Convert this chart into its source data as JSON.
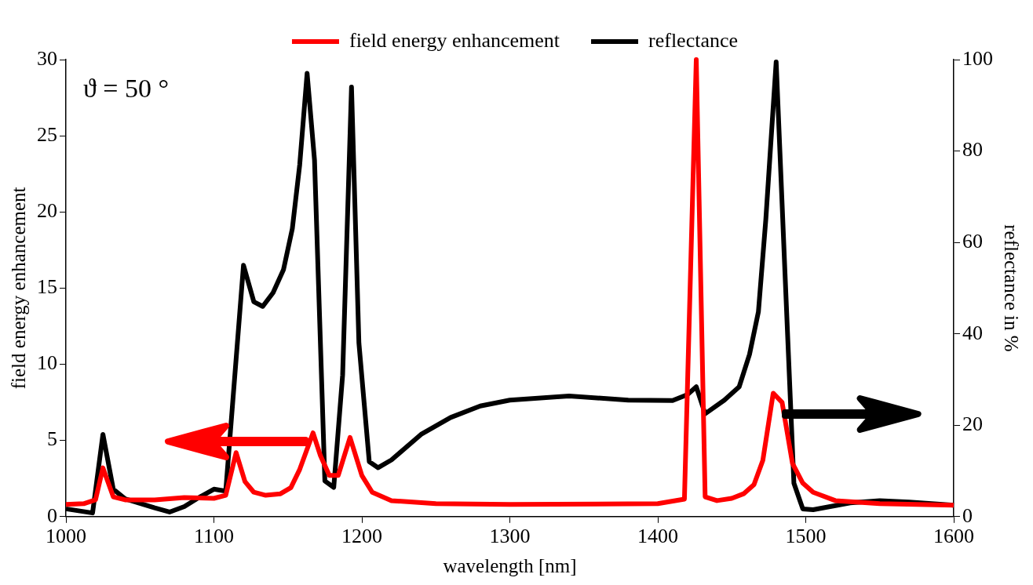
{
  "chart_data": {
    "type": "line",
    "xlabel": "wavelength [nm]",
    "ylabel": "field energy enhancement",
    "y2label": "reflectance in %",
    "xlim": [
      1000,
      1600
    ],
    "xticks": [
      1000,
      1100,
      1200,
      1300,
      1400,
      1500,
      1600
    ],
    "ylim": [
      0,
      30
    ],
    "yticks": [
      0,
      5,
      10,
      15,
      20,
      25,
      30
    ],
    "y2lim": [
      0,
      100
    ],
    "y2ticks": [
      0,
      20,
      40,
      60,
      80,
      100
    ],
    "grid": false,
    "legend": "top",
    "marker": "none",
    "line_style": "solid",
    "annotations": [
      "ϑ = 50 °"
    ],
    "series": [
      {
        "name": "field energy enhancement",
        "color": "#ff0000",
        "x": [
          1000,
          1012,
          1020,
          1025,
          1032,
          1040,
          1060,
          1080,
          1100,
          1108,
          1115,
          1121,
          1127,
          1135,
          1145,
          1152,
          1158,
          1167,
          1172,
          1178,
          1184,
          1192,
          1200,
          1207,
          1220,
          1250,
          1300,
          1400,
          1418,
          1426,
          1432,
          1440,
          1450,
          1458,
          1465,
          1471,
          1478,
          1484,
          1491,
          1498,
          1505,
          1520,
          1550,
          1600
        ],
        "values": [
          0.8,
          0.85,
          1.1,
          3.2,
          1.3,
          1.1,
          1.1,
          1.25,
          1.2,
          1.4,
          4.2,
          2.3,
          1.6,
          1.4,
          1.5,
          1.9,
          3.1,
          5.5,
          4.0,
          2.7,
          2.7,
          5.2,
          2.7,
          1.6,
          1.05,
          0.85,
          0.8,
          0.85,
          1.15,
          30,
          1.3,
          1.05,
          1.2,
          1.5,
          2.1,
          3.7,
          8.1,
          7.5,
          3.5,
          2.2,
          1.6,
          1.05,
          0.85,
          0.75
        ]
      },
      {
        "name": "reflectance",
        "color": "#000000",
        "axis": "y2",
        "x": [
          1000,
          1018,
          1025,
          1032,
          1040,
          1060,
          1070,
          1080,
          1090,
          1100,
          1108,
          1120,
          1127,
          1133,
          1140,
          1147,
          1153,
          1158,
          1163,
          1168,
          1175,
          1181,
          1187,
          1193,
          1198,
          1205,
          1211,
          1220,
          1240,
          1260,
          1280,
          1300,
          1340,
          1380,
          1410,
          1420,
          1426,
          1432,
          1445,
          1455,
          1462,
          1468,
          1473,
          1480,
          1486,
          1492,
          1498,
          1505,
          1530,
          1550,
          1570,
          1600
        ],
        "values": [
          1.7,
          0.8,
          18,
          6,
          3.9,
          1.9,
          1.0,
          2.2,
          4.2,
          6,
          5.6,
          55,
          47,
          46,
          49,
          54,
          63,
          77,
          97,
          78,
          7.8,
          6.4,
          31,
          94,
          38,
          12,
          10.7,
          12.4,
          18,
          21.7,
          24.2,
          25.5,
          26.4,
          25.5,
          25.4,
          26.7,
          28.4,
          22.5,
          25.5,
          28.4,
          35.5,
          44.8,
          65,
          99.5,
          53,
          7.3,
          1.7,
          1.5,
          3,
          3.5,
          3.2,
          2.5
        ]
      }
    ]
  }
}
